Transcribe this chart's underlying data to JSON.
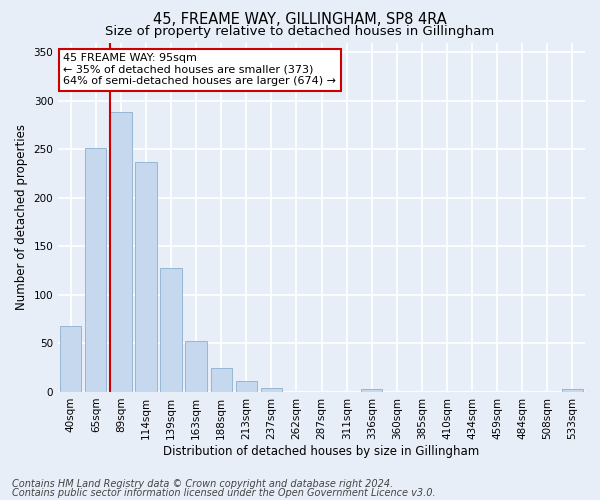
{
  "title": "45, FREAME WAY, GILLINGHAM, SP8 4RA",
  "subtitle": "Size of property relative to detached houses in Gillingham",
  "xlabel": "Distribution of detached houses by size in Gillingham",
  "ylabel": "Number of detached properties",
  "categories": [
    "40sqm",
    "65sqm",
    "89sqm",
    "114sqm",
    "139sqm",
    "163sqm",
    "188sqm",
    "213sqm",
    "237sqm",
    "262sqm",
    "287sqm",
    "311sqm",
    "336sqm",
    "360sqm",
    "385sqm",
    "410sqm",
    "434sqm",
    "459sqm",
    "484sqm",
    "508sqm",
    "533sqm"
  ],
  "values": [
    68,
    251,
    288,
    237,
    128,
    53,
    25,
    11,
    4,
    0,
    0,
    0,
    3,
    0,
    0,
    0,
    0,
    0,
    0,
    0,
    3
  ],
  "bar_color": "#c5d8ee",
  "bar_edge_color": "#8ab0d0",
  "highlight_line_index": 2,
  "highlight_color": "#cc0000",
  "ylim": [
    0,
    360
  ],
  "yticks": [
    0,
    50,
    100,
    150,
    200,
    250,
    300,
    350
  ],
  "annotation_text": "45 FREAME WAY: 95sqm\n← 35% of detached houses are smaller (373)\n64% of semi-detached houses are larger (674) →",
  "annotation_box_facecolor": "#ffffff",
  "annotation_box_edgecolor": "#cc0000",
  "footer_line1": "Contains HM Land Registry data © Crown copyright and database right 2024.",
  "footer_line2": "Contains public sector information licensed under the Open Government Licence v3.0.",
  "background_color": "#e8eef8",
  "grid_color": "#ffffff",
  "title_fontsize": 10.5,
  "subtitle_fontsize": 9.5,
  "axis_label_fontsize": 8.5,
  "tick_fontsize": 7.5,
  "annotation_fontsize": 8,
  "footer_fontsize": 7
}
